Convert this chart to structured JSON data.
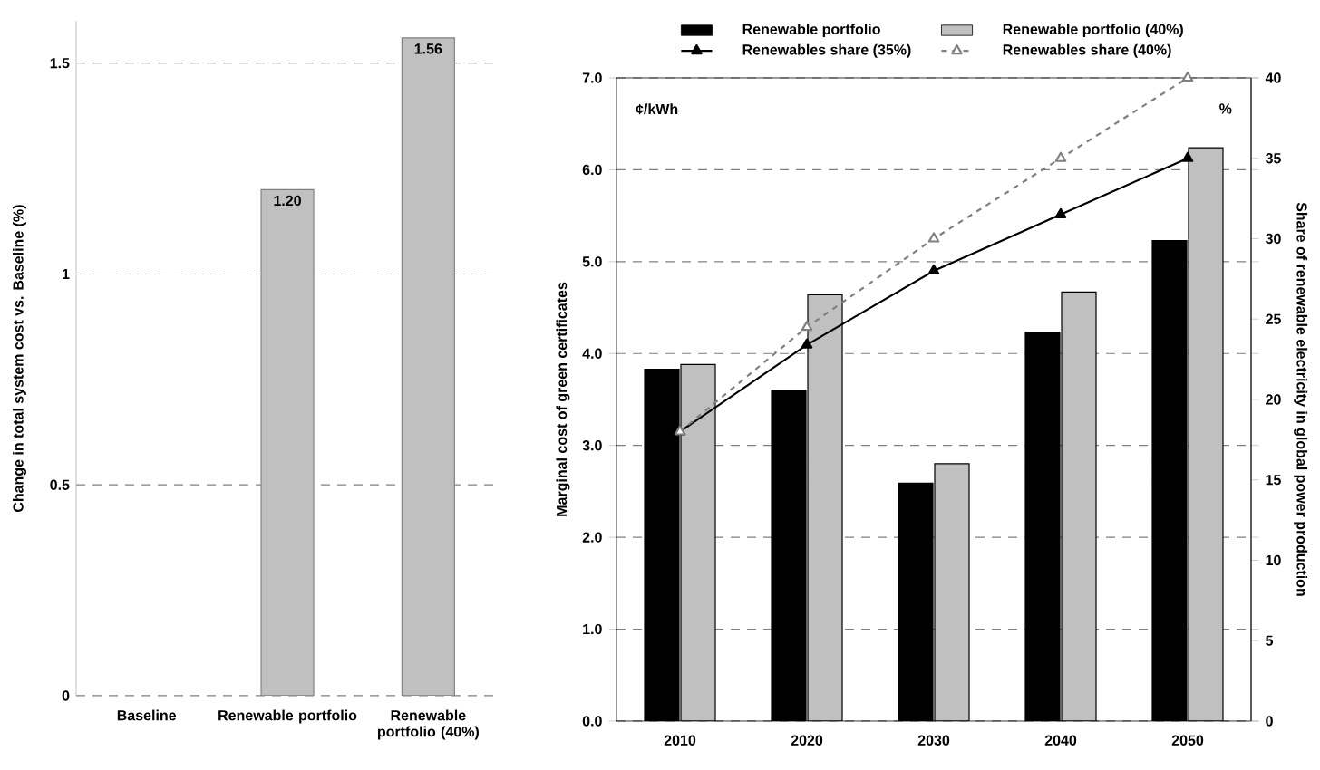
{
  "chart_data": [
    {
      "type": "bar",
      "ylabel": "Change in total system cost vs. Baseline (%)",
      "categories": [
        "Baseline",
        "Renewable portfolio",
        "Renewable portfolio (40%)"
      ],
      "values": [
        null,
        1.2,
        1.56
      ],
      "value_labels": [
        null,
        "1.20",
        "1.56"
      ],
      "color": "#c0c0c0",
      "ylim": [
        0,
        1.6
      ],
      "yticks": [
        0,
        0.5,
        1,
        1.5
      ],
      "grid": "y"
    },
    {
      "type": "bar",
      "ylabel": "Marginal cost of green certificates",
      "y2label": "Share of renewable electricity in global power production",
      "categories": [
        "2010",
        "2020",
        "2030",
        "2040",
        "2050"
      ],
      "series": [
        {
          "name": "Renewable portfolio",
          "color": "#000000",
          "values": [
            3.83,
            3.6,
            2.59,
            4.23,
            5.23
          ]
        },
        {
          "name": "Renewable portfolio (40%)",
          "color": "#c0c0c0",
          "values": [
            3.88,
            4.64,
            2.8,
            4.67,
            6.24
          ]
        },
        {
          "name": "Renewables share (35%)",
          "type": "line",
          "axis": "y2",
          "color": "#000000",
          "marker": "triangle",
          "line_style": "solid",
          "values": [
            18,
            23.4,
            28,
            31.5,
            35
          ]
        },
        {
          "name": "Renewables share (40%)",
          "type": "line",
          "axis": "y2",
          "color": "#808080",
          "marker": "triangle",
          "line_style": "dashed",
          "values": [
            18,
            24.5,
            30,
            35,
            40
          ]
        }
      ],
      "ylim": [
        0,
        7
      ],
      "yticks": [
        {
          "value": 0,
          "label": "0.0"
        },
        {
          "value": 1,
          "label": "1.0"
        },
        {
          "value": 2,
          "label": "2.0"
        },
        {
          "value": 3,
          "label": "3.0"
        },
        {
          "value": 4,
          "label": "4.0"
        },
        {
          "value": 5,
          "label": "5.0"
        },
        {
          "value": 6,
          "label": "6.0"
        },
        {
          "value": 7,
          "label": "7.0"
        }
      ],
      "y2lim": [
        0,
        40
      ],
      "y2ticks": [
        0,
        5,
        10,
        15,
        20,
        25,
        30,
        35,
        40
      ],
      "grid": "y",
      "legend": "top",
      "annotations": [
        "¢/kWh",
        "%"
      ]
    }
  ]
}
